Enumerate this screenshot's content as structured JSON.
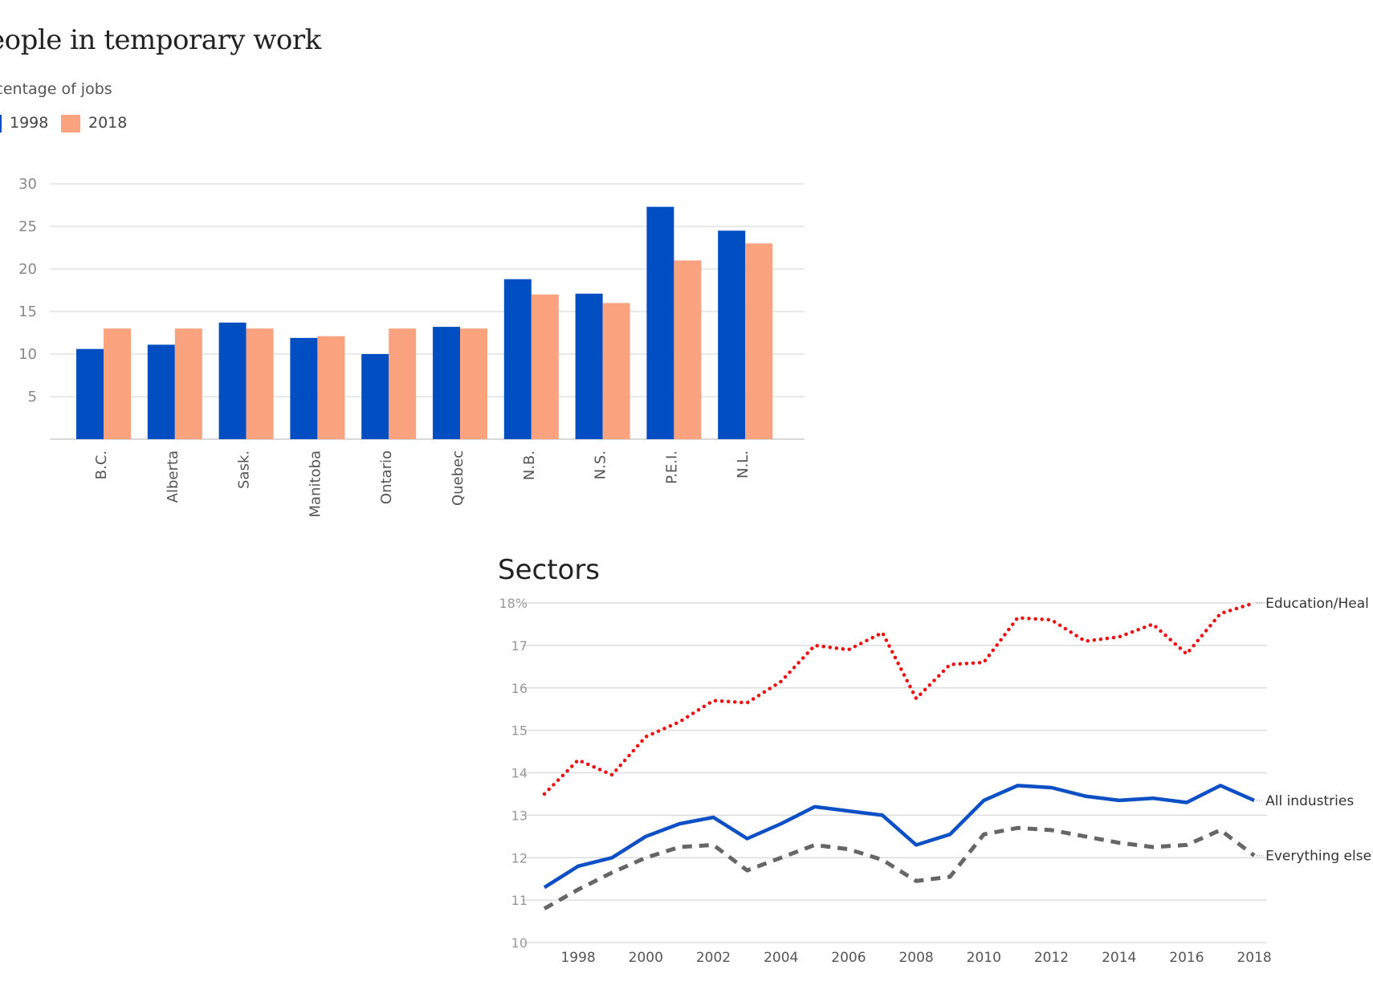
{
  "charts": {
    "temp_work": {
      "title": "eople in temporary work",
      "subtitle": "rcentage of jobs"
    },
    "sectors": {
      "title": "Sectors"
    }
  },
  "chart_data": [
    {
      "type": "bar",
      "title": "eople in temporary work",
      "subtitle": "rcentage of jobs",
      "categories": [
        "B.C.",
        "Alberta",
        "Sask.",
        "Manitoba",
        "Ontario",
        "Quebec",
        "N.B.",
        "N.S.",
        "P.E.I.",
        "N.L."
      ],
      "series": [
        {
          "name": "1998",
          "color": "#004ec1",
          "values": [
            10.6,
            11.1,
            13.7,
            11.9,
            10.0,
            13.2,
            18.8,
            17.1,
            27.3,
            24.5
          ]
        },
        {
          "name": "2018",
          "color": "#fba27e",
          "values": [
            13.0,
            13.0,
            13.0,
            12.1,
            13.0,
            13.0,
            17.0,
            16.0,
            21.0,
            23.0
          ]
        }
      ],
      "yticks": [
        "5",
        "10",
        "15",
        "20",
        "25",
        "30"
      ],
      "ylim": [
        0,
        30
      ],
      "grid": true,
      "legend": "top-left"
    },
    {
      "type": "line",
      "title": "Sectors",
      "x": [
        1997,
        1998,
        1999,
        2000,
        2001,
        2002,
        2003,
        2004,
        2005,
        2006,
        2007,
        2008,
        2009,
        2010,
        2011,
        2012,
        2013,
        2014,
        2015,
        2016,
        2017,
        2018
      ],
      "xticks": [
        "1998",
        "2000",
        "2002",
        "2004",
        "2006",
        "2008",
        "2010",
        "2012",
        "2014",
        "2016",
        "2018"
      ],
      "yticks": [
        "10",
        "11",
        "12",
        "13",
        "14",
        "15",
        "16",
        "17",
        "18%"
      ],
      "ylim": [
        10,
        18
      ],
      "grid": true,
      "series": [
        {
          "name": "Education/Heal",
          "color": "#ee1111",
          "style": "dotted",
          "values": [
            13.5,
            14.3,
            13.95,
            14.85,
            15.2,
            15.7,
            15.65,
            16.15,
            17.0,
            16.9,
            17.3,
            15.75,
            16.55,
            16.6,
            17.65,
            17.6,
            17.1,
            17.2,
            17.5,
            16.8,
            17.75,
            18.0
          ]
        },
        {
          "name": "All industries",
          "color": "#0d4fc4",
          "style": "solid",
          "values": [
            11.3,
            11.8,
            12.0,
            12.5,
            12.8,
            12.95,
            12.45,
            12.8,
            13.2,
            13.1,
            13.0,
            12.3,
            12.55,
            13.35,
            13.7,
            13.65,
            13.45,
            13.35,
            13.4,
            13.3,
            13.7,
            13.35
          ]
        },
        {
          "name": "Everything else",
          "color": "#666666",
          "style": "dashed",
          "values": [
            10.8,
            11.25,
            11.65,
            12.0,
            12.25,
            12.3,
            11.7,
            12.0,
            12.3,
            12.2,
            11.95,
            11.45,
            11.55,
            12.55,
            12.7,
            12.65,
            12.5,
            12.35,
            12.25,
            12.3,
            12.65,
            12.05
          ]
        }
      ]
    }
  ]
}
